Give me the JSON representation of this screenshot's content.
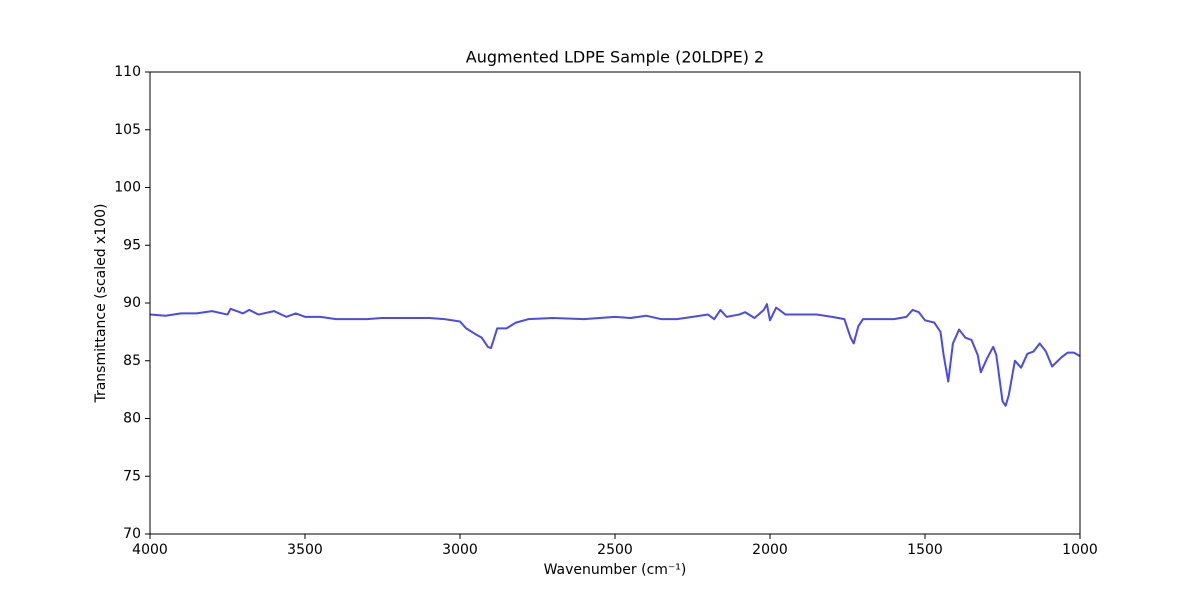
{
  "chart_data": {
    "type": "line",
    "title": "Augmented LDPE Sample (20LDPE) 2",
    "x_label": "Wavenumber (cm⁻¹)",
    "y_label": "Transmittance (scaled x100)",
    "color": "#4b4be6",
    "x": [
      4000,
      3950,
      3900,
      3850,
      3800,
      3750,
      3740,
      3700,
      3680,
      3650,
      3600,
      3560,
      3530,
      3500,
      3450,
      3400,
      3350,
      3300,
      3250,
      3200,
      3150,
      3100,
      3050,
      3000,
      2980,
      2950,
      2930,
      2910,
      2900,
      2880,
      2850,
      2820,
      2780,
      2700,
      2600,
      2550,
      2500,
      2450,
      2400,
      2350,
      2300,
      2250,
      2200,
      2180,
      2160,
      2140,
      2100,
      2080,
      2050,
      2020,
      2010,
      2000,
      1980,
      1950,
      1900,
      1850,
      1800,
      1760,
      1740,
      1730,
      1715,
      1700,
      1650,
      1600,
      1560,
      1540,
      1520,
      1500,
      1470,
      1450,
      1440,
      1425,
      1410,
      1390,
      1370,
      1350,
      1330,
      1320,
      1300,
      1280,
      1270,
      1250,
      1240,
      1230,
      1210,
      1190,
      1170,
      1150,
      1130,
      1110,
      1090,
      1060,
      1040,
      1020,
      1000
    ],
    "values": [
      89.0,
      88.9,
      89.1,
      89.1,
      89.3,
      89.0,
      89.5,
      89.1,
      89.4,
      89.0,
      89.3,
      88.8,
      89.1,
      88.8,
      88.8,
      88.6,
      88.6,
      88.6,
      88.7,
      88.7,
      88.7,
      88.7,
      88.6,
      88.4,
      87.8,
      87.3,
      87.0,
      86.2,
      86.1,
      87.8,
      87.8,
      88.3,
      88.6,
      88.7,
      88.6,
      88.7,
      88.8,
      88.7,
      88.9,
      88.6,
      88.6,
      88.8,
      89.0,
      88.6,
      89.4,
      88.8,
      89.0,
      89.2,
      88.7,
      89.4,
      89.9,
      88.5,
      89.6,
      89.0,
      89.0,
      89.0,
      88.8,
      88.6,
      87.0,
      86.5,
      88.0,
      88.6,
      88.6,
      88.6,
      88.8,
      89.4,
      89.2,
      88.5,
      88.3,
      87.5,
      85.5,
      83.2,
      86.5,
      87.7,
      87.0,
      86.8,
      85.5,
      84.0,
      85.2,
      86.2,
      85.5,
      81.5,
      81.1,
      82.0,
      85.0,
      84.4,
      85.6,
      85.8,
      86.5,
      85.8,
      84.5,
      85.3,
      85.7,
      85.7,
      85.4
    ],
    "xlim": [
      4000,
      1000
    ],
    "xticks": [
      4000,
      3500,
      3000,
      2500,
      2000,
      1500,
      1000
    ],
    "ylim": [
      70,
      110
    ],
    "yticks": [
      70,
      75,
      80,
      85,
      90,
      95,
      100,
      105,
      110
    ]
  }
}
